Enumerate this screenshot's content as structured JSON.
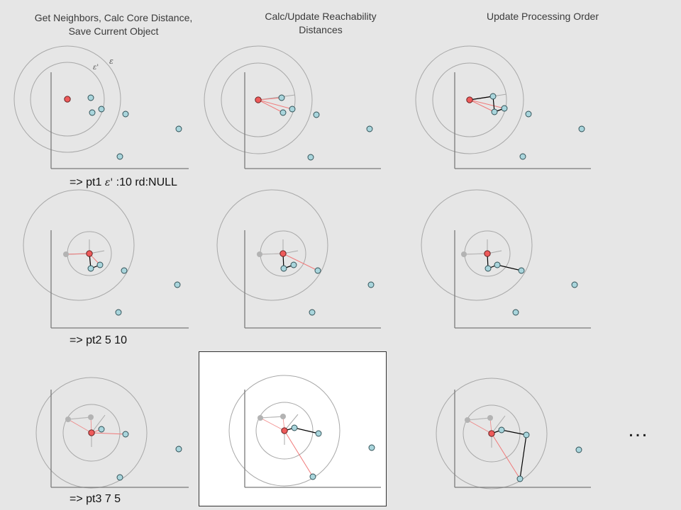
{
  "column_titles": [
    "Get Neighbors, Calc Core Distance,\nSave Current Object",
    "Calc/Update Reachability\nDistances",
    "Update Processing Order"
  ],
  "epsilon_labels": {
    "outer": "ε",
    "inner": "ε'"
  },
  "rows": [
    {
      "prefix": "=> pt1 ",
      "eps": "ε'",
      "suffix": " :10 rd:NULL"
    },
    {
      "prefix": "=> pt2 5 10",
      "eps": "",
      "suffix": ""
    },
    {
      "prefix": "=> pt3 7 5",
      "eps": "",
      "suffix": ""
    }
  ],
  "ellipsis": "…",
  "colors": {
    "current_point": "#ee5a5a",
    "neighbor_point": "#a9d5dc",
    "processed_point": "#b3b3b3",
    "reach_line": "#f07a7a",
    "order_line": "#000000",
    "circle": "#a8a8a8",
    "axis": "#7a7a7a",
    "highlight_panel": "#ffffff"
  }
}
